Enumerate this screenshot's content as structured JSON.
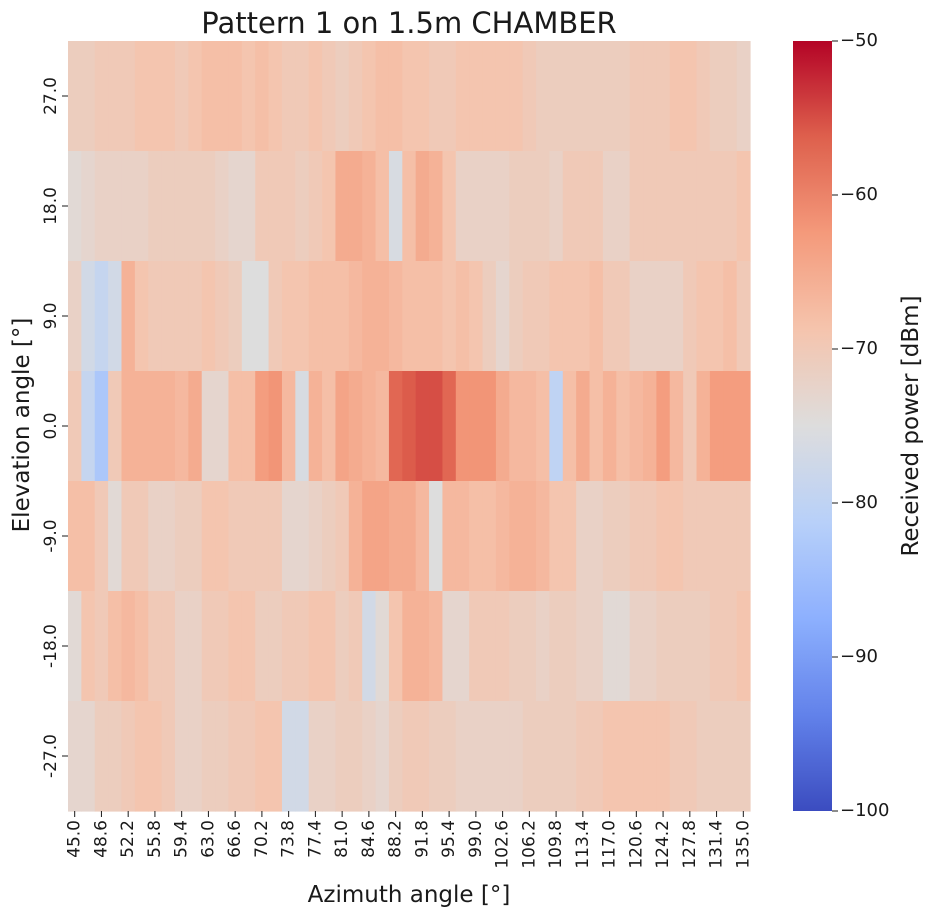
{
  "chart_data": {
    "type": "heatmap",
    "title": "Pattern 1 on 1.5m CHAMBER",
    "xlabel": "Azimuth angle [°]",
    "ylabel": "Elevation angle [°]",
    "colorbar_label": "Received power [dBm]",
    "colormap": "coolwarm",
    "vmin": -100,
    "vmax": -50,
    "colorbar_ticks": [
      "−50",
      "−60",
      "−70",
      "−80",
      "−90",
      "−100"
    ],
    "colorbar_tick_values": [
      -50,
      -60,
      -70,
      -80,
      -90,
      -100
    ],
    "x_tick_labels": [
      "45.0",
      "48.6",
      "52.2",
      "55.8",
      "59.4",
      "63.0",
      "66.6",
      "70.2",
      "73.8",
      "77.4",
      "81.0",
      "84.6",
      "88.2",
      "91.8",
      "95.4",
      "99.0",
      "102.6",
      "106.2",
      "109.8",
      "113.4",
      "117.0",
      "120.6",
      "124.2",
      "127.8",
      "131.4",
      "135.0"
    ],
    "y_tick_labels": [
      "27.0",
      "18.0",
      "9.0",
      "0.0",
      "-9.0",
      "-18.0",
      "-27.0"
    ],
    "x_values": [
      45.0,
      46.8,
      48.6,
      50.4,
      52.2,
      54.0,
      55.8,
      57.6,
      59.4,
      61.2,
      63.0,
      64.8,
      66.6,
      68.4,
      70.2,
      72.0,
      73.8,
      75.6,
      77.4,
      79.2,
      81.0,
      82.8,
      84.6,
      86.4,
      88.2,
      90.0,
      91.8,
      93.6,
      95.4,
      97.2,
      99.0,
      100.8,
      102.6,
      104.4,
      106.2,
      108.0,
      109.8,
      111.6,
      113.4,
      115.2,
      117.0,
      118.8,
      120.6,
      122.4,
      124.2,
      126.0,
      127.8,
      129.6,
      131.4,
      133.2,
      135.0
    ],
    "y_values": [
      27.0,
      18.0,
      9.0,
      0.0,
      -9.0,
      -18.0,
      -27.0
    ],
    "values": [
      [
        -71,
        -71,
        -70,
        -70,
        -70,
        -69,
        -69,
        -69,
        -70,
        -69,
        -68,
        -68,
        -68,
        -69,
        -68,
        -69,
        -70,
        -70,
        -69,
        -70,
        -71,
        -70,
        -69,
        -68,
        -68,
        -69,
        -69,
        -70,
        -70,
        -69,
        -69,
        -69,
        -69,
        -69,
        -70,
        -71,
        -71,
        -71,
        -71,
        -71,
        -71,
        -71,
        -70,
        -70,
        -70,
        -69,
        -69,
        -70,
        -71,
        -71,
        -72
      ],
      [
        -74,
        -73,
        -72,
        -72,
        -72,
        -72,
        -71,
        -71,
        -71,
        -71,
        -71,
        -72,
        -73,
        -73,
        -70,
        -70,
        -70,
        -71,
        -70,
        -69,
        -65,
        -65,
        -66,
        -68,
        -76,
        -68,
        -65,
        -66,
        -69,
        -72,
        -72,
        -72,
        -72,
        -71,
        -71,
        -71,
        -72,
        -70,
        -70,
        -70,
        -72,
        -72,
        -70,
        -70,
        -70,
        -70,
        -70,
        -70,
        -70,
        -70,
        -69
      ],
      [
        -72,
        -77,
        -79,
        -77,
        -66,
        -69,
        -70,
        -70,
        -70,
        -70,
        -69,
        -70,
        -71,
        -75,
        -75,
        -70,
        -69,
        -69,
        -68,
        -68,
        -68,
        -67,
        -66,
        -66,
        -67,
        -68,
        -68,
        -68,
        -69,
        -68,
        -69,
        -71,
        -73,
        -71,
        -70,
        -70,
        -69,
        -69,
        -69,
        -68,
        -70,
        -70,
        -72,
        -72,
        -72,
        -72,
        -70,
        -69,
        -69,
        -68,
        -70
      ],
      [
        -70,
        -79,
        -83,
        -70,
        -66,
        -66,
        -66,
        -66,
        -67,
        -65,
        -73,
        -73,
        -68,
        -68,
        -63,
        -62,
        -67,
        -76,
        -66,
        -68,
        -64,
        -65,
        -66,
        -67,
        -57,
        -56,
        -55,
        -55,
        -57,
        -62,
        -62,
        -62,
        -65,
        -67,
        -67,
        -68,
        -80,
        -68,
        -65,
        -68,
        -66,
        -68,
        -67,
        -66,
        -63,
        -67,
        -70,
        -66,
        -63,
        -63,
        -63
      ],
      [
        -68,
        -68,
        -70,
        -74,
        -70,
        -70,
        -72,
        -72,
        -71,
        -71,
        -69,
        -69,
        -70,
        -70,
        -70,
        -70,
        -73,
        -73,
        -72,
        -71,
        -70,
        -66,
        -64,
        -64,
        -65,
        -65,
        -67,
        -75,
        -67,
        -67,
        -68,
        -68,
        -67,
        -66,
        -66,
        -67,
        -69,
        -69,
        -72,
        -72,
        -71,
        -71,
        -70,
        -70,
        -69,
        -69,
        -70,
        -70,
        -70,
        -70,
        -70
      ],
      [
        -74,
        -69,
        -70,
        -68,
        -67,
        -68,
        -70,
        -70,
        -72,
        -72,
        -70,
        -70,
        -69,
        -69,
        -71,
        -71,
        -70,
        -70,
        -69,
        -69,
        -71,
        -70,
        -77,
        -74,
        -69,
        -66,
        -66,
        -67,
        -73,
        -73,
        -70,
        -70,
        -70,
        -71,
        -71,
        -72,
        -71,
        -71,
        -72,
        -72,
        -74,
        -74,
        -72,
        -72,
        -71,
        -71,
        -71,
        -71,
        -70,
        -70,
        -69
      ],
      [
        -73,
        -73,
        -71,
        -71,
        -70,
        -69,
        -69,
        -70,
        -72,
        -72,
        -71,
        -71,
        -70,
        -70,
        -69,
        -69,
        -77,
        -77,
        -72,
        -72,
        -71,
        -71,
        -72,
        -73,
        -71,
        -70,
        -70,
        -71,
        -71,
        -72,
        -72,
        -72,
        -72,
        -72,
        -71,
        -71,
        -71,
        -71,
        -70,
        -70,
        -69,
        -69,
        -69,
        -69,
        -69,
        -70,
        -70,
        -71,
        -71,
        -71,
        -71
      ]
    ]
  }
}
